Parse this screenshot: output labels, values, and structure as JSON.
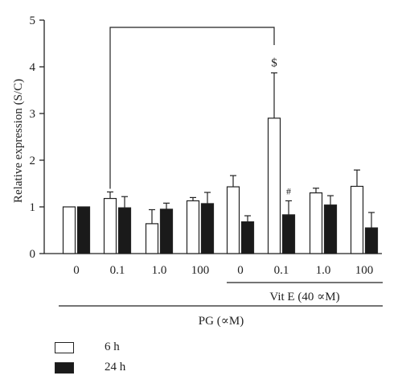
{
  "chart_data": {
    "type": "bar",
    "ylabel": "Relative expression (S/C)",
    "ylim": [
      0,
      5
    ],
    "yticks": [
      "0",
      "1",
      "2",
      "3",
      "4",
      "5"
    ],
    "categories": [
      "0",
      "0.1",
      "1.0",
      "100",
      "0",
      "0.1",
      "1.0",
      "100"
    ],
    "series": [
      {
        "name": "6 h",
        "color": "#ffffff",
        "values": [
          1.0,
          1.18,
          0.64,
          1.13,
          1.43,
          2.9,
          1.3,
          1.44
        ],
        "errors": [
          0,
          0.14,
          0.3,
          0.07,
          0.24,
          0.97,
          0.1,
          0.35
        ]
      },
      {
        "name": "24 h",
        "color": "#1a1a1a",
        "values": [
          1.0,
          0.98,
          0.95,
          1.07,
          0.68,
          0.83,
          1.04,
          0.55
        ],
        "errors": [
          0,
          0.24,
          0.13,
          0.24,
          0.13,
          0.3,
          0.2,
          0.33
        ]
      }
    ],
    "annotations": [
      {
        "text": "$",
        "category_index": 5,
        "series_index": 0
      },
      {
        "text": "#",
        "category_index": 5,
        "series_index": 1
      }
    ],
    "group_labels": {
      "vit_e": "Vit E (40 ∝M)",
      "pg": "PG (∝M)"
    },
    "bracket": {
      "from_category": 1,
      "to_category": 5,
      "y": 5
    },
    "legend_position": "bottom-left"
  }
}
